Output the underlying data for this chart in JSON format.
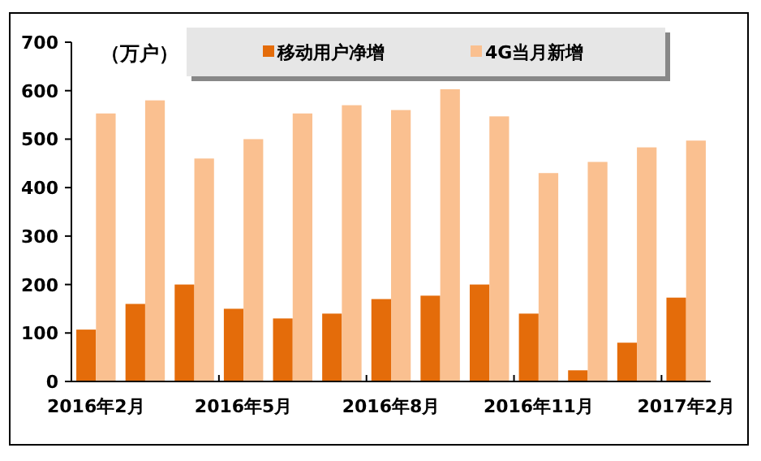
{
  "chart_data": {
    "type": "bar",
    "ylabel": "（万户）",
    "categories": [
      "2016年2月",
      null,
      null,
      "2016年5月",
      null,
      null,
      "2016年8月",
      null,
      null,
      "2016年11月",
      null,
      null,
      "2017年2月"
    ],
    "series": [
      {
        "name": "移动用户净增",
        "color": "#e46c0a",
        "values": [
          107,
          160,
          200,
          150,
          130,
          140,
          170,
          177,
          200,
          140,
          23,
          80,
          173
        ]
      },
      {
        "name": "4G当月新增",
        "color": "#fac090",
        "values": [
          553,
          580,
          460,
          500,
          553,
          570,
          560,
          603,
          547,
          430,
          453,
          483,
          497
        ]
      }
    ],
    "ylim": [
      0,
      700
    ],
    "yticks": [
      0,
      100,
      200,
      300,
      400,
      500,
      600,
      700
    ],
    "legend": "top",
    "grid": false
  }
}
